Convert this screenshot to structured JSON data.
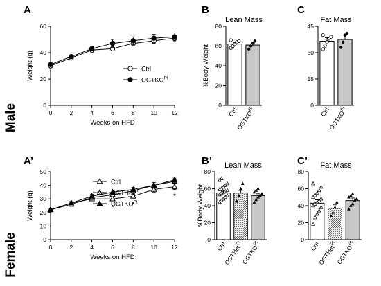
{
  "rows": [
    {
      "label": "Male"
    },
    {
      "label": "Female"
    }
  ],
  "chart_data": [
    {
      "type": "line",
      "panel": "A",
      "xlabel": "Weeks on HFD",
      "ylabel": "Weight (g)",
      "xlim": [
        0,
        12
      ],
      "ylim": [
        0,
        60
      ],
      "xticks": [
        0,
        2,
        4,
        6,
        8,
        10,
        12
      ],
      "yticks": [
        0,
        20,
        40,
        60
      ],
      "legend_position": "right",
      "series": [
        {
          "name": "Ctrl",
          "marker": "open-circle",
          "x": [
            0,
            2,
            4,
            6,
            8,
            10,
            12
          ],
          "y": [
            30,
            36,
            42,
            43,
            47,
            49,
            51
          ],
          "err": [
            1,
            1,
            1.5,
            1.5,
            2,
            2,
            2
          ]
        },
        {
          "name": "OGTKO",
          "name_sup": "PI",
          "marker": "filled-circle",
          "x": [
            0,
            2,
            4,
            6,
            8,
            10,
            12
          ],
          "y": [
            31,
            37,
            43,
            47,
            49,
            51,
            52
          ],
          "err": [
            1,
            1,
            1.5,
            3,
            3,
            3,
            3
          ]
        }
      ]
    },
    {
      "type": "bar",
      "panel": "B",
      "title": "Lean Mass",
      "ylabel": "%Body Weight",
      "ylim": [
        0,
        80
      ],
      "yticks": [
        0,
        20,
        40,
        60,
        80
      ],
      "categories": [
        {
          "name": "Ctrl"
        },
        {
          "name": "OGTKO",
          "sup": "PI"
        }
      ],
      "values": [
        62,
        61
      ],
      "err": [
        2,
        2
      ],
      "points": [
        [
          58,
          60,
          62,
          64,
          65,
          66
        ],
        [
          57,
          60,
          63,
          65
        ]
      ]
    },
    {
      "type": "bar",
      "panel": "C",
      "title": "Fat Mass",
      "ylabel": "",
      "ylim": [
        0,
        45
      ],
      "yticks": [
        0,
        15,
        30,
        45
      ],
      "categories": [
        {
          "name": "Ctrl"
        },
        {
          "name": "OGTKO",
          "sup": "PI"
        }
      ],
      "values": [
        36.5,
        37.5
      ],
      "err": [
        2,
        2.5
      ],
      "points": [
        [
          32,
          34,
          36,
          38,
          39,
          40
        ],
        [
          33,
          36,
          40,
          41
        ]
      ]
    },
    {
      "type": "line",
      "panel": "A’",
      "xlabel": "Weeks on HFD",
      "ylabel": "Weight (g)",
      "xlim": [
        0,
        12
      ],
      "ylim": [
        0,
        50
      ],
      "xticks": [
        0,
        2,
        4,
        6,
        8,
        10,
        12
      ],
      "yticks": [
        0,
        10,
        20,
        30,
        40,
        50
      ],
      "legend_position": "center",
      "annotation": "*",
      "significance_weeks": [
        6,
        8,
        12
      ],
      "series": [
        {
          "name": "Ctrl",
          "marker": "open-triangle",
          "x": [
            0,
            2,
            4,
            6,
            8,
            10,
            12
          ],
          "y": [
            22,
            27,
            30,
            30,
            32,
            37,
            39
          ],
          "err": [
            1,
            1,
            1.5,
            1.5,
            1.5,
            2,
            2
          ]
        },
        {
          "name": "OGTHet",
          "name_sup": "PI",
          "marker": "hatched-triangle",
          "x": [
            0,
            2,
            4,
            6,
            8,
            10,
            12
          ],
          "y": [
            22,
            26,
            31,
            33,
            36,
            40,
            43
          ],
          "err": [
            1,
            1,
            1.5,
            1.5,
            2,
            2,
            2
          ]
        },
        {
          "name": "OGTKO",
          "name_sup": "PI",
          "marker": "filled-triangle",
          "x": [
            0,
            2,
            4,
            6,
            8,
            10,
            12
          ],
          "y": [
            22,
            27,
            32,
            35,
            37,
            40,
            44
          ],
          "err": [
            1,
            1,
            1.5,
            1.5,
            1.5,
            2,
            2
          ]
        }
      ]
    },
    {
      "type": "bar",
      "panel": "B’",
      "title": "Lean Mass",
      "ylabel": "%Body Weight",
      "ylim": [
        0,
        80
      ],
      "yticks": [
        0,
        20,
        40,
        60,
        80
      ],
      "categories": [
        {
          "name": "Ctrl"
        },
        {
          "name": "OGTHet",
          "sup": "PI"
        },
        {
          "name": "OGTKO",
          "sup": "PI"
        }
      ],
      "values": [
        55,
        55,
        52
      ],
      "err": [
        3,
        3,
        2
      ],
      "points": [
        [
          44,
          46,
          48,
          50,
          52,
          53,
          55,
          56,
          57,
          58,
          59,
          60,
          62,
          64,
          66,
          70,
          72
        ],
        [
          45,
          52,
          60,
          66
        ],
        [
          44,
          47,
          50,
          52,
          54,
          56,
          58,
          60
        ]
      ]
    },
    {
      "type": "bar",
      "panel": "C’",
      "title": "Fat Mass",
      "ylabel": "",
      "ylim": [
        0,
        80
      ],
      "yticks": [
        0,
        20,
        40,
        60,
        80
      ],
      "categories": [
        {
          "name": "Ctrl"
        },
        {
          "name": "OGTHet",
          "sup": "PI"
        },
        {
          "name": "OGTKO",
          "sup": "PI"
        }
      ],
      "values": [
        43,
        37,
        46
      ],
      "err": [
        4,
        4,
        3
      ],
      "points": [
        [
          18,
          26,
          30,
          34,
          38,
          40,
          42,
          44,
          46,
          48,
          50,
          52,
          55,
          58,
          62,
          66
        ],
        [
          28,
          32,
          38,
          44
        ],
        [
          36,
          40,
          42,
          46,
          48,
          50,
          52,
          54
        ]
      ]
    }
  ]
}
